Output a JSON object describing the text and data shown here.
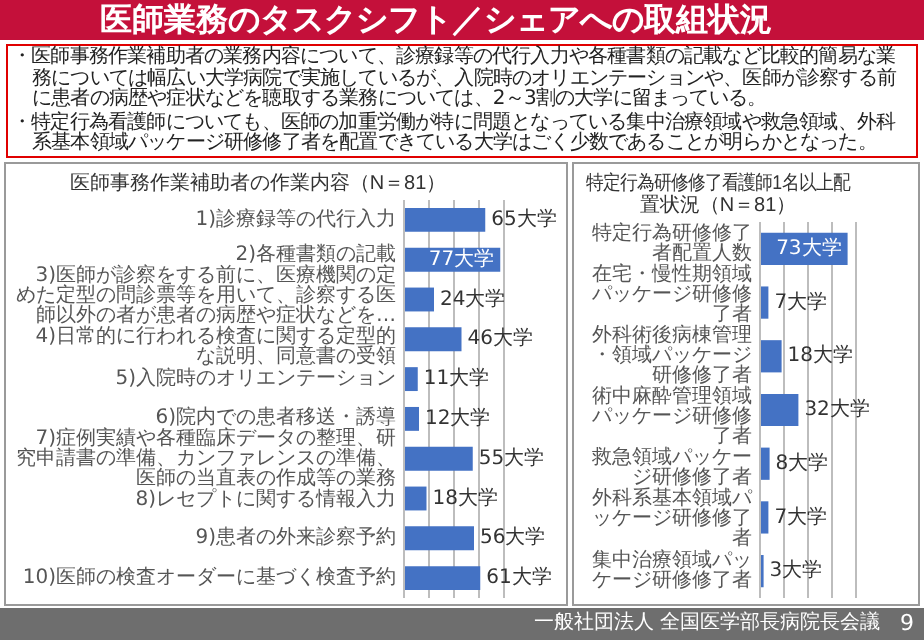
{
  "chart_data": [
    {
      "type": "other",
      "title": "医師業務のタスクシフト／シェアへの取組状況",
      "annotations": [
        "・医師事務作業補助者の業務内容について、診療録等の代行入力や各種書類の記載など比較的簡易な業務については幅広い大学病院で実施しているが、入院時のオリエンテーションや、医師が診察する前に患者の病歴や症状などを聴取する業務については、2～3割の大学に留まっている。",
        "・特定行為看護師についても、医師の加重労働が特に問題となっている集中治療領域や救急領域、外科系基本領域パッケージ研修修了者を配置できている大学はごく少数であることが明らかとなった。",
        "一般社団法人 全国医学部長病院長会議",
        "9"
      ]
    },
    {
      "type": "bar",
      "orientation": "horizontal",
      "title": "医師事務作業補助者の作業内容（N＝81）",
      "categories": [
        "1)診療録等の代行入力",
        "2)各種書類の記載",
        "3)医師が診察をする前に、医療機関の定めた定型の問診票等を用いて、診察する医師以外の者が患者の病歴や症状などを…",
        "4)日常的に行われる検査に関する定型的な説明、同意書の受領",
        "5)入院時のオリエンテーション",
        "6)院内での患者移送・誘導",
        "7)症例実績や各種臨床データの整理、研究申請書の準備、カンファレンスの準備、医師の当直表の作成等の業務",
        "8)レセプトに関する情報入力",
        "9)患者の外来診察予約",
        "10)医師の検査オーダーに基づく検査予約"
      ],
      "values": [
        65,
        77,
        24,
        46,
        11,
        12,
        55,
        18,
        56,
        61
      ],
      "value_labels": [
        "65大学",
        "77大学",
        "24大学",
        "46大学",
        "11大学",
        "12大学",
        "55大学",
        "18大学",
        "56大学",
        "61大学"
      ],
      "color": "#4472c4",
      "xlim": [
        0,
        80
      ],
      "xticks": [
        {
          "value": 0,
          "label": null
        },
        {
          "value": 20,
          "label": null
        },
        {
          "value": 40,
          "label": null
        },
        {
          "value": 60,
          "label": null
        },
        {
          "value": 80,
          "label": null
        }
      ],
      "grid": "x",
      "tick_labels": "y"
    },
    {
      "type": "bar",
      "orientation": "horizontal",
      "title": "特定行為研修修了看護師1名以上配置状況（N＝81）",
      "categories": [
        "特定行為研修修了者配置人数",
        "在宅・慢性期領域パッケージ研修修了者",
        "外科術後病棟管理・領域パッケージ研修修了者",
        "術中麻酔管理領域パッケージ研修修了者",
        "救急領域パッケージ研修修了者",
        "外科系基本領域パッケージ研修修了者",
        "集中治療領域パッケージ研修修了者"
      ],
      "values": [
        73,
        7,
        18,
        32,
        8,
        7,
        3
      ],
      "value_labels": [
        "73大学",
        "7大学",
        "18大学",
        "32大学",
        "8大学",
        "7大学",
        "3大学"
      ],
      "color": "#4472c4",
      "xlim": [
        0,
        80
      ],
      "xticks": [
        {
          "value": 0,
          "label": null
        },
        {
          "value": 20,
          "label": null
        },
        {
          "value": 40,
          "label": null
        },
        {
          "value": 60,
          "label": null
        },
        {
          "value": 80,
          "label": null
        }
      ],
      "grid": "x",
      "tick_labels": "y"
    }
  ]
}
